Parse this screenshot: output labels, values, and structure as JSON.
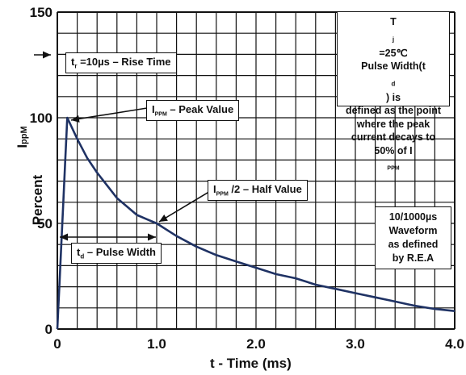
{
  "chart_data": {
    "type": "line",
    "x_label": "t  - Time (ms)",
    "y_label": "Percent",
    "y_label_symbol": "I",
    "y_label_symbol_sub": "ppM",
    "x_range": [
      0,
      4.0
    ],
    "y_range": [
      0,
      150
    ],
    "x_ticks": [
      "0",
      "1.0",
      "2.0",
      "3.0",
      "4.0"
    ],
    "y_ticks": [
      "0",
      "50",
      "100",
      "150"
    ],
    "grid": true,
    "series": [
      {
        "x": [
          0,
          0.01,
          0.02,
          0.04,
          0.06,
          0.08,
          0.1,
          0.2,
          0.3,
          0.4,
          0.5,
          0.6,
          0.7,
          0.8,
          0.9,
          1.0,
          1.2,
          1.4,
          1.6,
          1.8,
          2.0,
          2.2,
          2.4,
          2.6,
          2.8,
          3.0,
          3.2,
          3.4,
          3.6,
          3.8,
          4.0
        ],
        "y": [
          0,
          10,
          20,
          40,
          60,
          80,
          100,
          90,
          81,
          74,
          68,
          62,
          58,
          54,
          52,
          50,
          44,
          39,
          35,
          32,
          29,
          26,
          24,
          21,
          19,
          17,
          15,
          13,
          11,
          9.5,
          8.5
        ]
      }
    ]
  },
  "annotations": {
    "tr": {
      "main": "t",
      "sub": "r",
      "rest": " =10µs  –  Rise Time"
    },
    "ippm": {
      "main": "I",
      "sub": "PPM",
      "rest": "  –  Peak Value"
    },
    "half": {
      "main": "I",
      "sub": "PPM",
      "rest": " /2  –  Half Value"
    },
    "td": {
      "main": "t",
      "sub": "d",
      "rest": "  –  Pulse Width"
    },
    "conditions_box": {
      "line1_main": "T",
      "line1_sub": "j",
      "line1_rest": " =25℃",
      "line2_a": "Pulse Width(t",
      "line2_sub": "d",
      "line2_b": " ) is",
      "line3": "defined as the point",
      "line4": "where the peak",
      "line5": "current decays to",
      "line6_a": "50% of I",
      "line6_sub": "PPM"
    },
    "waveform_box": [
      "10/1000µs",
      "Waveform",
      "as defined",
      "by R.E.A"
    ]
  },
  "colors": {
    "curve": "#1f3264",
    "grid": "#111111",
    "text": "#111111"
  }
}
